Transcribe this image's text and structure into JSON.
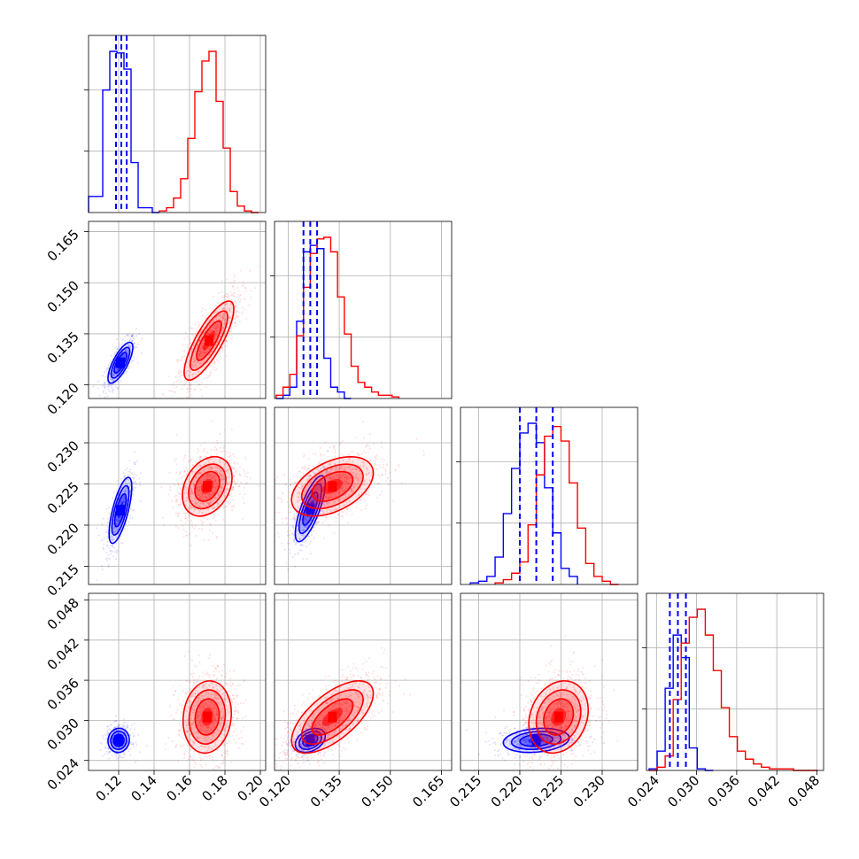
{
  "chart_data": {
    "type": "corner",
    "title": "",
    "grid": true,
    "legend": "none",
    "series": [
      {
        "color": "#0000ff"
      },
      {
        "color": "#ff0000"
      }
    ],
    "params": [
      {
        "range": [
          0.103,
          0.203
        ],
        "ticks": [
          0.12,
          0.14,
          0.16,
          0.18,
          0.2
        ],
        "tick_labels": [
          "0.12",
          "0.14",
          "0.16",
          "0.18",
          "0.20"
        ],
        "quantiles": [
          0.1185,
          0.1215,
          0.1245
        ],
        "marginals": [
          {
            "series": "blue",
            "edges": [
              0.103,
              0.107,
              0.111,
              0.115,
              0.119,
              0.123,
              0.127,
              0.131,
              0.135,
              0.139,
              0.143
            ],
            "counts": [
              0.1,
              0.1,
              0.76,
              1.0,
              0.99,
              0.89,
              0.31,
              0.03,
              0.03,
              0.0
            ]
          },
          {
            "series": "red",
            "edges": [
              0.143,
              0.147,
              0.151,
              0.155,
              0.159,
              0.163,
              0.167,
              0.171,
              0.175,
              0.179,
              0.183,
              0.187,
              0.191,
              0.195,
              0.199
            ],
            "counts": [
              0.01,
              0.03,
              0.09,
              0.21,
              0.46,
              0.75,
              0.94,
              1.0,
              0.69,
              0.4,
              0.13,
              0.04,
              0.01,
              0.0
            ]
          }
        ]
      },
      {
        "range": [
          0.116,
          0.168
        ],
        "ticks": [
          0.12,
          0.135,
          0.15,
          0.165
        ],
        "tick_labels": [
          "0.120",
          "0.135",
          "0.150",
          "0.165"
        ],
        "quantiles": [
          0.1245,
          0.1265,
          0.1285
        ],
        "marginals": [
          {
            "series": "blue",
            "edges": [
              0.1165,
              0.1185,
              0.1205,
              0.1225,
              0.1245,
              0.1265,
              0.1285,
              0.1305,
              0.1325,
              0.1345,
              0.1365,
              0.1385
            ],
            "counts": [
              0.0,
              0.02,
              0.07,
              0.48,
              0.91,
              0.95,
              0.93,
              0.25,
              0.07,
              0.04,
              0.0
            ]
          },
          {
            "series": "red",
            "edges": [
              0.1165,
              0.1185,
              0.1205,
              0.1225,
              0.1245,
              0.1265,
              0.1285,
              0.1305,
              0.1325,
              0.1345,
              0.1365,
              0.1385,
              0.1405,
              0.1425,
              0.1445,
              0.1465,
              0.1485,
              0.1505,
              0.1525
            ],
            "counts": [
              0.02,
              0.07,
              0.15,
              0.39,
              0.69,
              0.9,
              0.99,
              1.0,
              0.91,
              0.63,
              0.4,
              0.2,
              0.1,
              0.07,
              0.04,
              0.02,
              0.02,
              0.01
            ]
          }
        ]
      },
      {
        "range": [
          0.2128,
          0.2343
        ],
        "ticks": [
          0.215,
          0.22,
          0.225,
          0.23
        ],
        "tick_labels": [
          "0.215",
          "0.220",
          "0.225",
          "0.230"
        ],
        "quantiles": [
          0.22,
          0.222,
          0.224
        ],
        "marginals": [
          {
            "series": "blue",
            "edges": [
              0.214,
              0.215,
              0.216,
              0.217,
              0.218,
              0.219,
              0.22,
              0.221,
              0.222,
              0.223,
              0.224,
              0.225,
              0.226,
              0.227
            ],
            "counts": [
              0.01,
              0.02,
              0.05,
              0.17,
              0.44,
              0.72,
              0.94,
              1.0,
              0.88,
              0.6,
              0.32,
              0.1,
              0.05
            ]
          },
          {
            "series": "red",
            "edges": [
              0.217,
              0.218,
              0.219,
              0.22,
              0.221,
              0.222,
              0.223,
              0.224,
              0.225,
              0.226,
              0.227,
              0.228,
              0.229,
              0.23,
              0.231,
              0.232
            ],
            "counts": [
              0.01,
              0.03,
              0.07,
              0.14,
              0.37,
              0.68,
              0.92,
              0.98,
              0.89,
              0.63,
              0.35,
              0.13,
              0.05,
              0.02,
              0.0
            ]
          }
        ]
      },
      {
        "range": [
          0.0225,
          0.049
        ],
        "ticks": [
          0.024,
          0.03,
          0.036,
          0.042,
          0.048
        ],
        "tick_labels": [
          "0.024",
          "0.030",
          "0.036",
          "0.042",
          "0.048"
        ],
        "quantiles": [
          0.026,
          0.0272,
          0.0284
        ],
        "marginals": [
          {
            "series": "blue",
            "edges": [
              0.0229,
              0.0241,
              0.0253,
              0.0265,
              0.0277,
              0.0289,
              0.0301,
              0.0313,
              0.0325
            ],
            "counts": [
              0.01,
              0.12,
              0.51,
              0.84,
              0.7,
              0.14,
              0.01,
              0.0
            ]
          },
          {
            "series": "red",
            "edges": [
              0.0229,
              0.0241,
              0.0253,
              0.0265,
              0.0277,
              0.0289,
              0.0301,
              0.0313,
              0.0325,
              0.0337,
              0.0349,
              0.0361,
              0.0373,
              0.0385,
              0.0397,
              0.0409,
              0.0421,
              0.0433,
              0.0445,
              0.0457,
              0.0469,
              0.0481
            ],
            "counts": [
              0.0,
              0.02,
              0.09,
              0.44,
              0.79,
              0.95,
              1.0,
              0.84,
              0.62,
              0.39,
              0.21,
              0.12,
              0.07,
              0.04,
              0.02,
              0.01,
              0.01,
              0.01,
              0.0,
              0.0,
              0.0
            ]
          }
        ]
      }
    ],
    "pairs": [
      {
        "x": 0,
        "y": 1,
        "blue": {
          "mean": [
            0.121,
            0.1265
          ],
          "sd": [
            0.0035,
            0.003
          ],
          "rho": 0.75
        },
        "red": {
          "mean": [
            0.171,
            0.133
          ],
          "sd": [
            0.007,
            0.0058
          ],
          "rho": 0.8
        }
      },
      {
        "x": 0,
        "y": 2,
        "blue": {
          "mean": [
            0.121,
            0.2218
          ],
          "sd": [
            0.0032,
            0.002
          ],
          "rho": 0.7
        },
        "red": {
          "mean": [
            0.17,
            0.2247
          ],
          "sd": [
            0.007,
            0.0018
          ],
          "rho": 0.3
        }
      },
      {
        "x": 0,
        "y": 3,
        "blue": {
          "mean": [
            0.12,
            0.027
          ],
          "sd": [
            0.003,
            0.0009
          ],
          "rho": 0.05
        },
        "red": {
          "mean": [
            0.17,
            0.0305
          ],
          "sd": [
            0.0068,
            0.0027
          ],
          "rho": 0.1
        }
      },
      {
        "x": 1,
        "y": 2,
        "blue": {
          "mean": [
            0.1265,
            0.222
          ],
          "sd": [
            0.0022,
            0.002
          ],
          "rho": 0.75
        },
        "red": {
          "mean": [
            0.133,
            0.2247
          ],
          "sd": [
            0.006,
            0.0018
          ],
          "rho": 0.45
        }
      },
      {
        "x": 1,
        "y": 3,
        "blue": {
          "mean": [
            0.1265,
            0.027
          ],
          "sd": [
            0.0022,
            0.0009
          ],
          "rho": 0.35
        },
        "red": {
          "mean": [
            0.133,
            0.0305
          ],
          "sd": [
            0.006,
            0.0027
          ],
          "rho": 0.65
        }
      },
      {
        "x": 2,
        "y": 3,
        "blue": {
          "mean": [
            0.222,
            0.027
          ],
          "sd": [
            0.002,
            0.0009
          ],
          "rho": 0.2
        },
        "red": {
          "mean": [
            0.2247,
            0.0305
          ],
          "sd": [
            0.0018,
            0.0027
          ],
          "rho": 0.2
        }
      }
    ]
  }
}
